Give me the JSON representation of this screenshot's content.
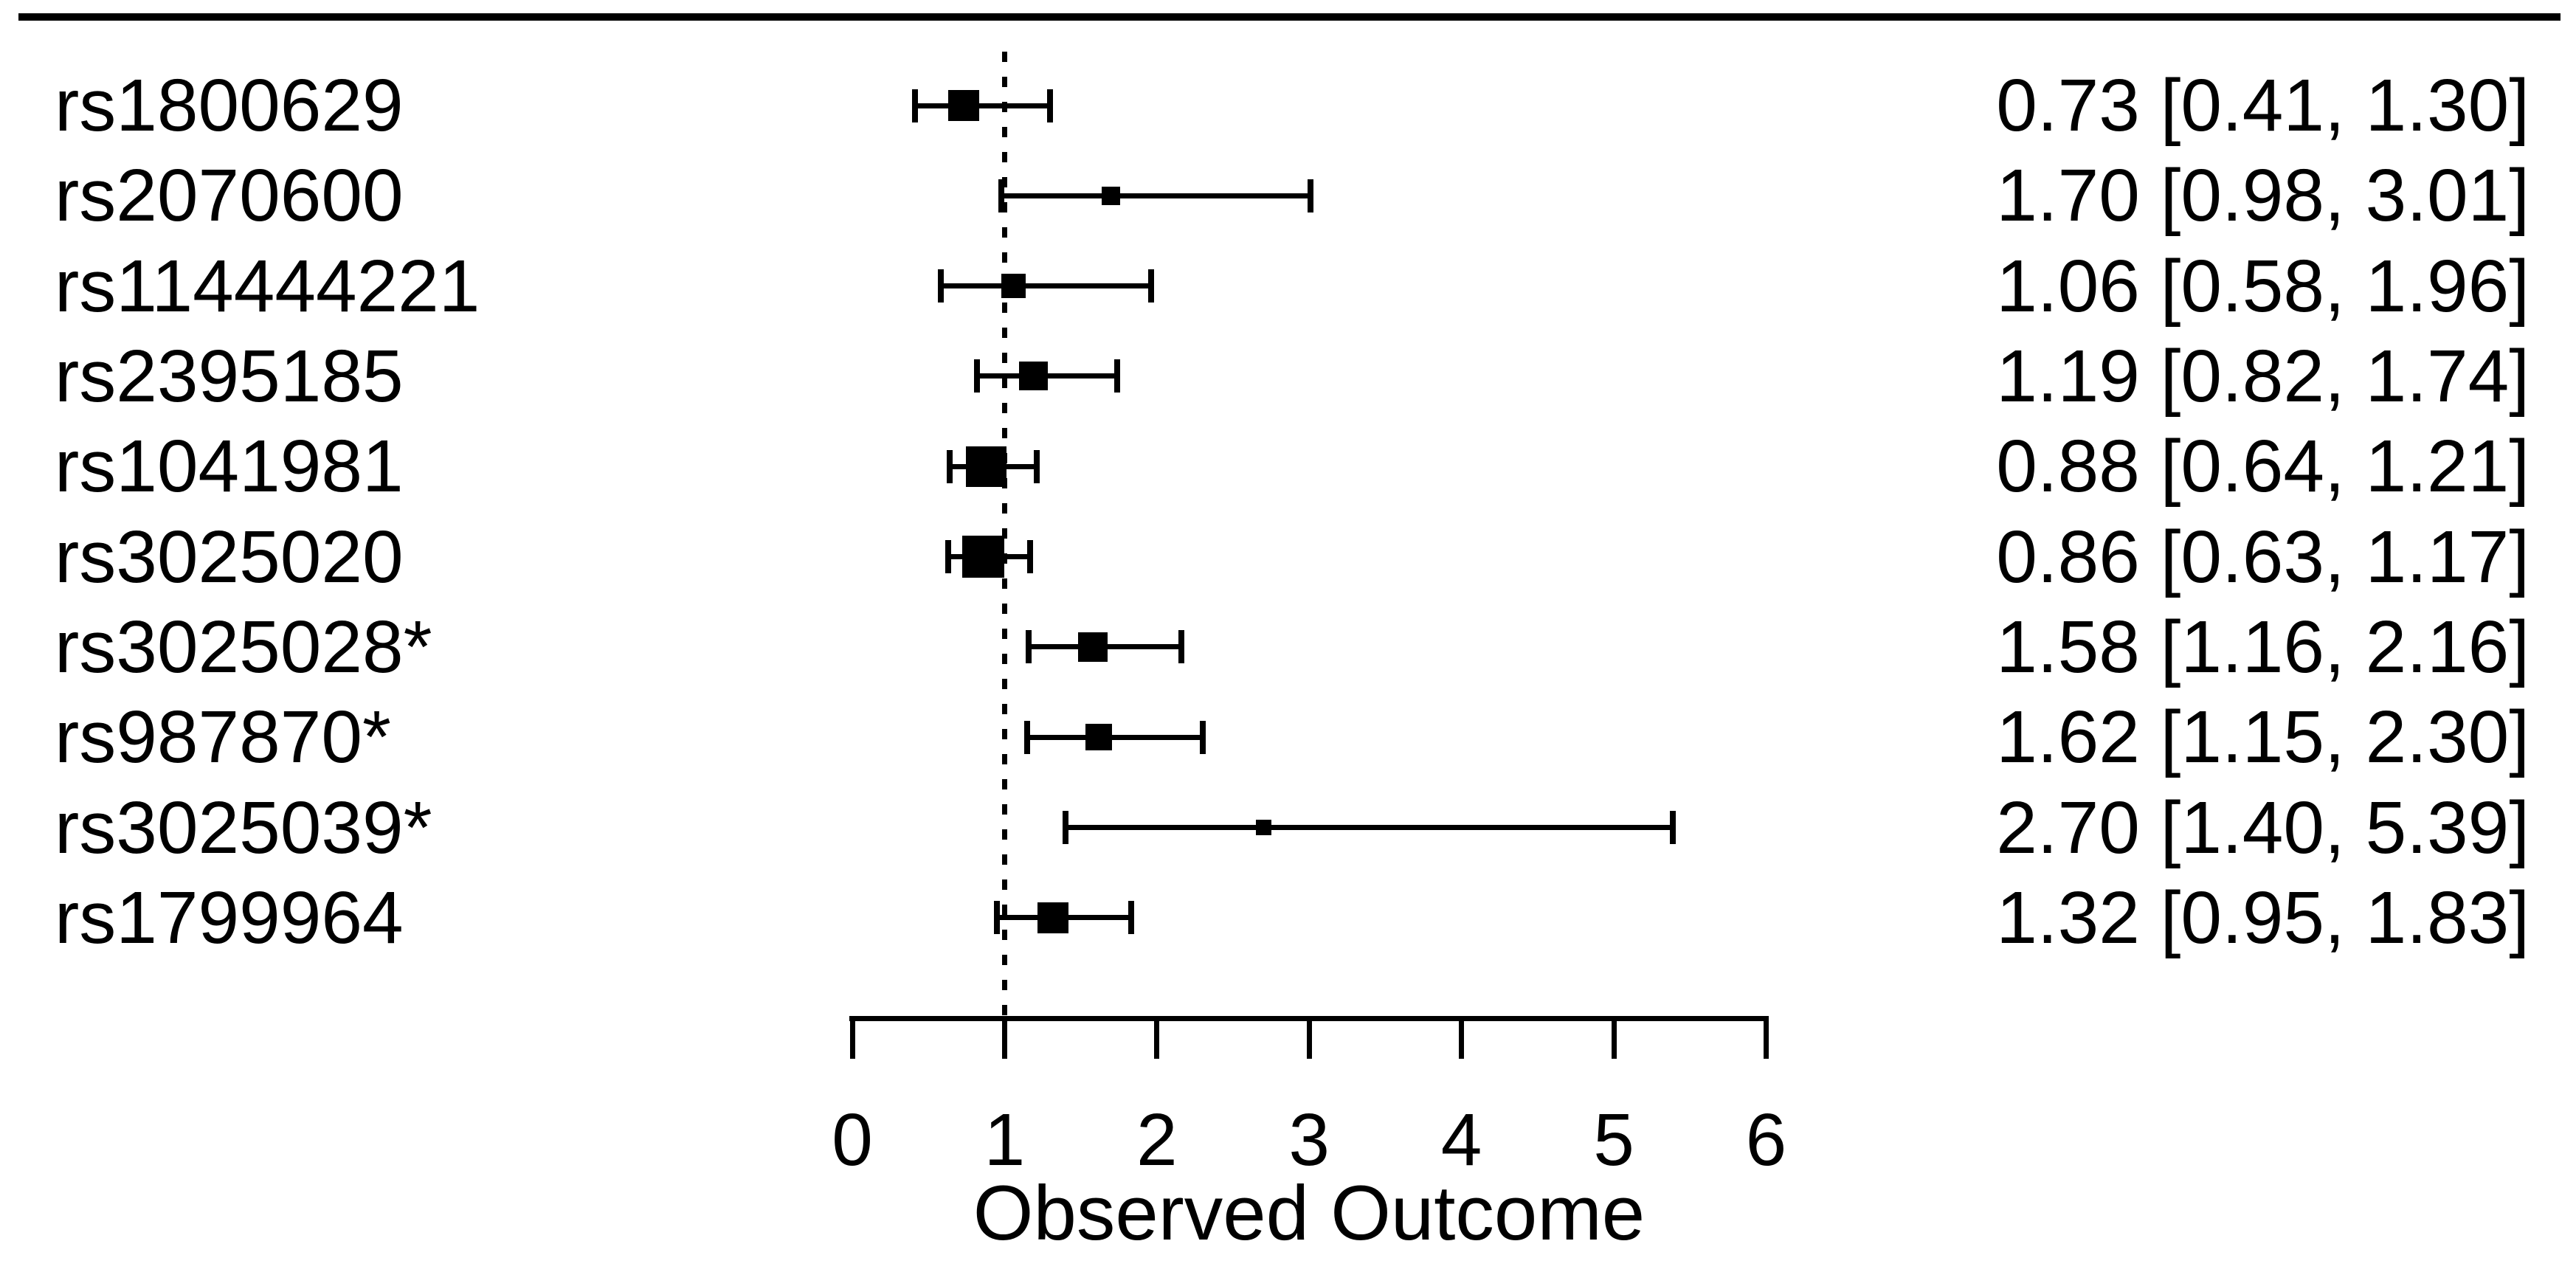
{
  "colors": {
    "foreground": "#000000",
    "background": "#ffffff"
  },
  "chart_data": {
    "type": "forest",
    "title": "",
    "xlabel": "Observed Outcome",
    "x_ticks": [
      0,
      1,
      2,
      3,
      4,
      5,
      6
    ],
    "xlim": [
      0,
      6
    ],
    "reference_line": 1,
    "grid": false,
    "legend": false,
    "studies": [
      {
        "label": "rs1800629",
        "estimate": 0.73,
        "ci_lower": 0.41,
        "ci_upper": 1.3,
        "annotation": "0.73 [0.41, 1.30]",
        "marker_px": 42
      },
      {
        "label": "rs2070600",
        "estimate": 1.7,
        "ci_lower": 0.98,
        "ci_upper": 3.01,
        "annotation": "1.70 [0.98, 3.01]",
        "marker_px": 25
      },
      {
        "label": "rs114444221",
        "estimate": 1.06,
        "ci_lower": 0.58,
        "ci_upper": 1.96,
        "annotation": "1.06 [0.58, 1.96]",
        "marker_px": 33
      },
      {
        "label": "rs2395185",
        "estimate": 1.19,
        "ci_lower": 0.82,
        "ci_upper": 1.74,
        "annotation": "1.19 [0.82, 1.74]",
        "marker_px": 39
      },
      {
        "label": "rs1041981",
        "estimate": 0.88,
        "ci_lower": 0.64,
        "ci_upper": 1.21,
        "annotation": "0.88 [0.64, 1.21]",
        "marker_px": 55
      },
      {
        "label": "rs3025020",
        "estimate": 0.86,
        "ci_lower": 0.63,
        "ci_upper": 1.17,
        "annotation": "0.86 [0.63, 1.17]",
        "marker_px": 57
      },
      {
        "label": "rs3025028*",
        "estimate": 1.58,
        "ci_lower": 1.16,
        "ci_upper": 2.16,
        "annotation": "1.58 [1.16, 2.16]",
        "marker_px": 40
      },
      {
        "label": "rs987870*",
        "estimate": 1.62,
        "ci_lower": 1.15,
        "ci_upper": 2.3,
        "annotation": "1.62 [1.15, 2.30]",
        "marker_px": 36
      },
      {
        "label": "rs3025039*",
        "estimate": 2.7,
        "ci_lower": 1.4,
        "ci_upper": 5.39,
        "annotation": "2.70 [1.40, 5.39]",
        "marker_px": 21
      },
      {
        "label": "rs1799964",
        "estimate": 1.32,
        "ci_lower": 0.95,
        "ci_upper": 1.83,
        "annotation": "1.32 [0.95, 1.83]",
        "marker_px": 42
      }
    ]
  }
}
